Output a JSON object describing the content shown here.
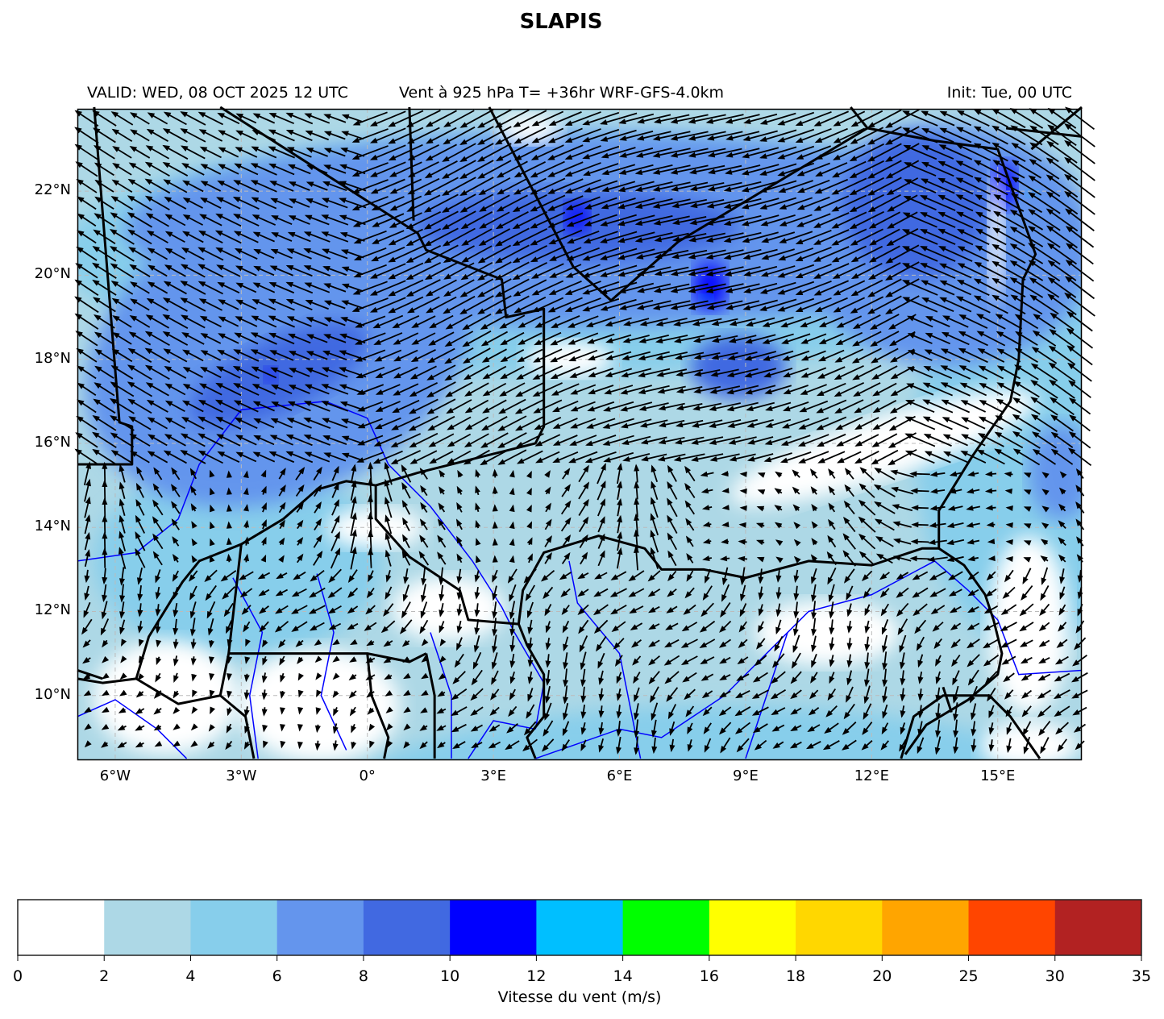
{
  "title": "SLAPIS",
  "subtitle_left": "VALID: WED, 08 OCT 2025 12 UTC",
  "subtitle_center": "Vent à 925 hPa T= +36hr  WRF-GFS-4.0km",
  "subtitle_right": "Init: Tue, 00 UTC",
  "map": {
    "lon_range": [
      -6.9,
      17.0
    ],
    "lat_range": [
      8.46,
      23.96
    ],
    "lon_ticks": [
      {
        "value": -6,
        "label": "6°W"
      },
      {
        "value": -3,
        "label": "3°W"
      },
      {
        "value": 0,
        "label": "0°"
      },
      {
        "value": 3,
        "label": "3°E"
      },
      {
        "value": 6,
        "label": "6°E"
      },
      {
        "value": 9,
        "label": "9°E"
      },
      {
        "value": 12,
        "label": "12°E"
      },
      {
        "value": 15,
        "label": "15°E"
      }
    ],
    "lat_ticks": [
      {
        "value": 22,
        "label": "22°N"
      },
      {
        "value": 20,
        "label": "20°N"
      },
      {
        "value": 18,
        "label": "18°N"
      },
      {
        "value": 16,
        "label": "16°N"
      },
      {
        "value": 14,
        "label": "14°N"
      },
      {
        "value": 12,
        "label": "12°N"
      },
      {
        "value": 10,
        "label": "10°N"
      }
    ],
    "gridlines": true,
    "border_color": "#000000",
    "river_color": "#0000ff"
  },
  "colorbar": {
    "label": "Vitesse du vent (m/s)",
    "levels": [
      "0",
      "2",
      "4",
      "6",
      "8",
      "10",
      "12",
      "14",
      "16",
      "18",
      "20",
      "25",
      "30",
      "35"
    ],
    "colors": [
      "#ffffff",
      "#add8e6",
      "#87ceeb",
      "#6495ed",
      "#4169e1",
      "#0000ff",
      "#00bfff",
      "#00ff00",
      "#ffff00",
      "#ffd700",
      "#ffa500",
      "#ff4500",
      "#b22222"
    ]
  }
}
